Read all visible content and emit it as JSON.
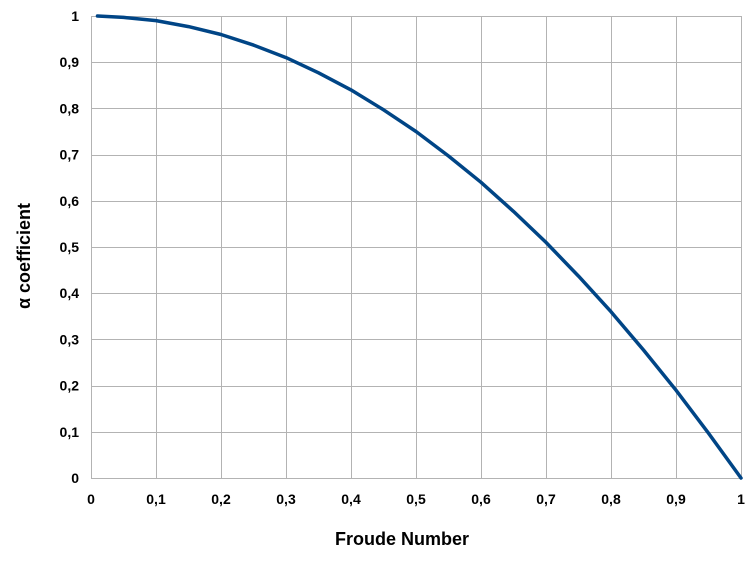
{
  "chart_data": {
    "type": "line",
    "title": "",
    "xlabel": "Froude Number",
    "ylabel": "α coefficient",
    "xlim": [
      0,
      1
    ],
    "ylim": [
      0,
      1
    ],
    "grid": true,
    "x_ticks": [
      "0",
      "0,1",
      "0,2",
      "0,3",
      "0,4",
      "0,5",
      "0,6",
      "0,7",
      "0,8",
      "0,9",
      "1"
    ],
    "y_ticks": [
      "0",
      "0,1",
      "0,2",
      "0,3",
      "0,4",
      "0,5",
      "0,6",
      "0,7",
      "0,8",
      "0,9",
      "1"
    ],
    "series": [
      {
        "color": "#004586",
        "x": [
          0.01,
          0.05,
          0.1,
          0.15,
          0.2,
          0.25,
          0.3,
          0.35,
          0.4,
          0.45,
          0.5,
          0.55,
          0.6,
          0.65,
          0.7,
          0.75,
          0.8,
          0.85,
          0.9,
          0.95,
          1.0
        ],
        "y": [
          1.0,
          0.997,
          0.99,
          0.977,
          0.96,
          0.937,
          0.91,
          0.877,
          0.84,
          0.797,
          0.75,
          0.697,
          0.64,
          0.577,
          0.51,
          0.437,
          0.36,
          0.277,
          0.19,
          0.097,
          0.0
        ]
      }
    ]
  }
}
